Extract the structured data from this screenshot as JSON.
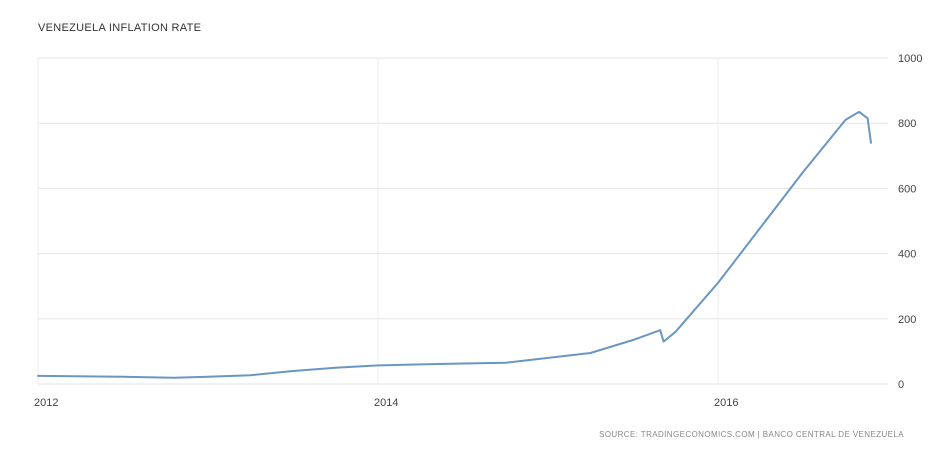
{
  "chart_title": "VENEZUELA INFLATION RATE",
  "source_text": "SOURCE: TRADINGECONOMICS.COM | BANCO CENTRAL DE VENEZUELA",
  "chart_data": {
    "type": "line",
    "title": "VENEZUELA INFLATION RATE",
    "xlabel": "",
    "ylabel": "",
    "x_ticks": [
      "2012",
      "2014",
      "2016"
    ],
    "y_ticks": [
      "0",
      "200",
      "400",
      "600",
      "800",
      "1000"
    ],
    "xlim": [
      2012.0,
      2017.0
    ],
    "ylim": [
      0,
      1000
    ],
    "grid": true,
    "line_color": "#6a96c3",
    "series": [
      {
        "values": [
          {
            "x": 2012.0,
            "y": 25
          },
          {
            "x": 2012.5,
            "y": 22
          },
          {
            "x": 2012.8,
            "y": 19
          },
          {
            "x": 2013.0,
            "y": 22
          },
          {
            "x": 2013.25,
            "y": 27
          },
          {
            "x": 2013.5,
            "y": 40
          },
          {
            "x": 2013.75,
            "y": 50
          },
          {
            "x": 2014.0,
            "y": 57
          },
          {
            "x": 2014.25,
            "y": 60
          },
          {
            "x": 2014.5,
            "y": 63
          },
          {
            "x": 2014.75,
            "y": 65
          },
          {
            "x": 2015.0,
            "y": 80
          },
          {
            "x": 2015.25,
            "y": 95
          },
          {
            "x": 2015.5,
            "y": 135
          },
          {
            "x": 2015.66,
            "y": 165
          },
          {
            "x": 2015.68,
            "y": 130
          },
          {
            "x": 2015.75,
            "y": 160
          },
          {
            "x": 2016.0,
            "y": 310
          },
          {
            "x": 2016.25,
            "y": 480
          },
          {
            "x": 2016.5,
            "y": 650
          },
          {
            "x": 2016.75,
            "y": 810
          },
          {
            "x": 2016.83,
            "y": 835
          },
          {
            "x": 2016.88,
            "y": 815
          },
          {
            "x": 2016.9,
            "y": 740
          }
        ]
      }
    ]
  }
}
